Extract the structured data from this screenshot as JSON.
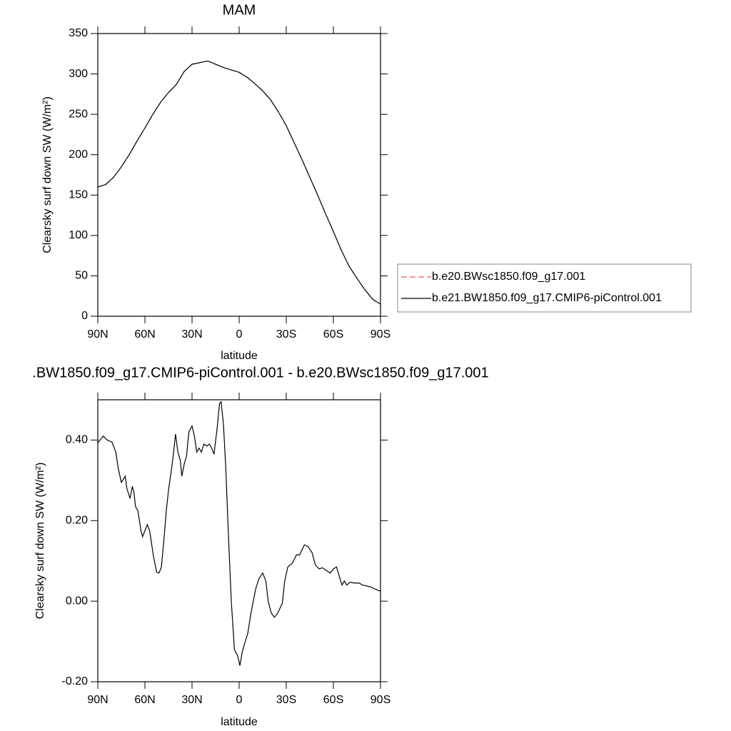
{
  "chart_data": [
    {
      "type": "line",
      "title": "MAM",
      "x_label": "latitude",
      "y_label": "Clearsky surf down SW (W/m²)",
      "x": [
        90,
        85,
        80,
        75,
        70,
        65,
        60,
        55,
        50,
        45,
        40,
        35,
        30,
        25,
        20,
        15,
        10,
        5,
        0,
        -5,
        -10,
        -15,
        -20,
        -25,
        -30,
        -35,
        -40,
        -45,
        -50,
        -55,
        -60,
        -65,
        -70,
        -75,
        -80,
        -85,
        -90
      ],
      "series": [
        {
          "name": "b.e20.BWsc1850.f09_g17.001",
          "color": "#ff5050",
          "dash": "dashed",
          "values": [
            160,
            163,
            172,
            185,
            200,
            217,
            233,
            250,
            265,
            277,
            287,
            303,
            312,
            314,
            316,
            312,
            308,
            305,
            302,
            296,
            288,
            279,
            268,
            253,
            236,
            215,
            194,
            172,
            150,
            127,
            105,
            82,
            62,
            47,
            33,
            21,
            15
          ]
        },
        {
          "name": "b.e21.BW1850.f09_g17.CMIP6-piControl.001",
          "color": "#000000",
          "dash": "solid",
          "values": [
            160,
            163,
            172,
            185,
            200,
            217,
            233,
            250,
            265,
            277,
            287,
            303,
            312,
            314,
            316,
            312,
            308,
            305,
            302,
            296,
            288,
            279,
            268,
            253,
            236,
            215,
            194,
            172,
            150,
            127,
            105,
            82,
            62,
            47,
            33,
            21,
            15
          ]
        }
      ],
      "xlim": [
        90,
        -90
      ],
      "xticks": [
        {
          "value": 90,
          "label": "90N"
        },
        {
          "value": 60,
          "label": "60N"
        },
        {
          "value": 30,
          "label": "30N"
        },
        0,
        {
          "value": -30,
          "label": "30S"
        },
        {
          "value": -60,
          "label": "60S"
        },
        {
          "value": -90,
          "label": "90S"
        }
      ],
      "ylim": [
        0,
        350
      ],
      "yticks": [
        0,
        50,
        100,
        150,
        200,
        250,
        300,
        350
      ],
      "legend": "right"
    },
    {
      "type": "line",
      "title": ".BW1850.f09_g17.CMIP6-piControl.001 - b.e20.BWsc1850.f09_g17.001",
      "x_label": "latitude",
      "y_label": "Clearsky surf down SW (W/m²)",
      "x": [
        90,
        86.5,
        84,
        81,
        78.5,
        77,
        75,
        72.5,
        71.5,
        69.5,
        68,
        67,
        66,
        64.5,
        62.5,
        61.5,
        58.5,
        57,
        54.5,
        52.5,
        51,
        49.5,
        47.5,
        46.5,
        45,
        43,
        42,
        40.5,
        39,
        37.5,
        36.5,
        35,
        33.5,
        32,
        30,
        28.5,
        27,
        25.5,
        24,
        22.5,
        20.5,
        19,
        17.5,
        16,
        14,
        12.5,
        11.5,
        10,
        8.5,
        7,
        5,
        3,
        1,
        -0.5,
        -2,
        -3.5,
        -5.5,
        -7.5,
        -9,
        -10.5,
        -12.5,
        -15,
        -17,
        -18.5,
        -20.5,
        -22.5,
        -24.5,
        -27.5,
        -29,
        -31,
        -34,
        -36.5,
        -38.5,
        -41.5,
        -44,
        -46.5,
        -48.5,
        -51,
        -53,
        -56,
        -58,
        -60,
        -62,
        -63.5,
        -65.5,
        -67,
        -68.5,
        -70.5,
        -73.5,
        -76.5,
        -78.5,
        -82,
        -84,
        -86.5,
        -90
      ],
      "color": "#000000",
      "values": [
        0.393,
        0.41,
        0.4,
        0.395,
        0.37,
        0.33,
        0.295,
        0.31,
        0.28,
        0.255,
        0.285,
        0.27,
        0.235,
        0.225,
        0.175,
        0.16,
        0.19,
        0.175,
        0.11,
        0.072,
        0.07,
        0.085,
        0.17,
        0.22,
        0.275,
        0.33,
        0.36,
        0.415,
        0.37,
        0.35,
        0.31,
        0.34,
        0.36,
        0.42,
        0.435,
        0.41,
        0.37,
        0.38,
        0.37,
        0.39,
        0.385,
        0.39,
        0.38,
        0.365,
        0.43,
        0.49,
        0.495,
        0.44,
        0.33,
        0.18,
        0.0,
        -0.12,
        -0.135,
        -0.16,
        -0.125,
        -0.105,
        -0.08,
        -0.03,
        0.0,
        0.03,
        0.055,
        0.07,
        0.05,
        0.0,
        -0.03,
        -0.04,
        -0.03,
        -0.005,
        0.05,
        0.085,
        0.095,
        0.115,
        0.115,
        0.14,
        0.135,
        0.12,
        0.09,
        0.08,
        0.083,
        0.075,
        0.07,
        0.08,
        0.085,
        0.065,
        0.04,
        0.05,
        0.04,
        0.047,
        0.045,
        0.045,
        0.04,
        0.037,
        0.035,
        0.03,
        0.025
      ],
      "xlim": [
        90,
        -90
      ],
      "xticks": [
        {
          "value": 90,
          "label": "90N"
        },
        {
          "value": 60,
          "label": "60N"
        },
        {
          "value": 30,
          "label": "30N"
        },
        0,
        {
          "value": -30,
          "label": "30S"
        },
        {
          "value": -60,
          "label": "60S"
        },
        {
          "value": -90,
          "label": "90S"
        }
      ],
      "ylim": [
        -0.2,
        0.5
      ],
      "yticks": [
        {
          "value": -0.2,
          "label": "-0.20"
        },
        {
          "value": 0,
          "label": "0.00"
        },
        {
          "value": 0.2,
          "label": "0.20"
        },
        {
          "value": 0.4,
          "label": "0.40"
        }
      ]
    }
  ]
}
